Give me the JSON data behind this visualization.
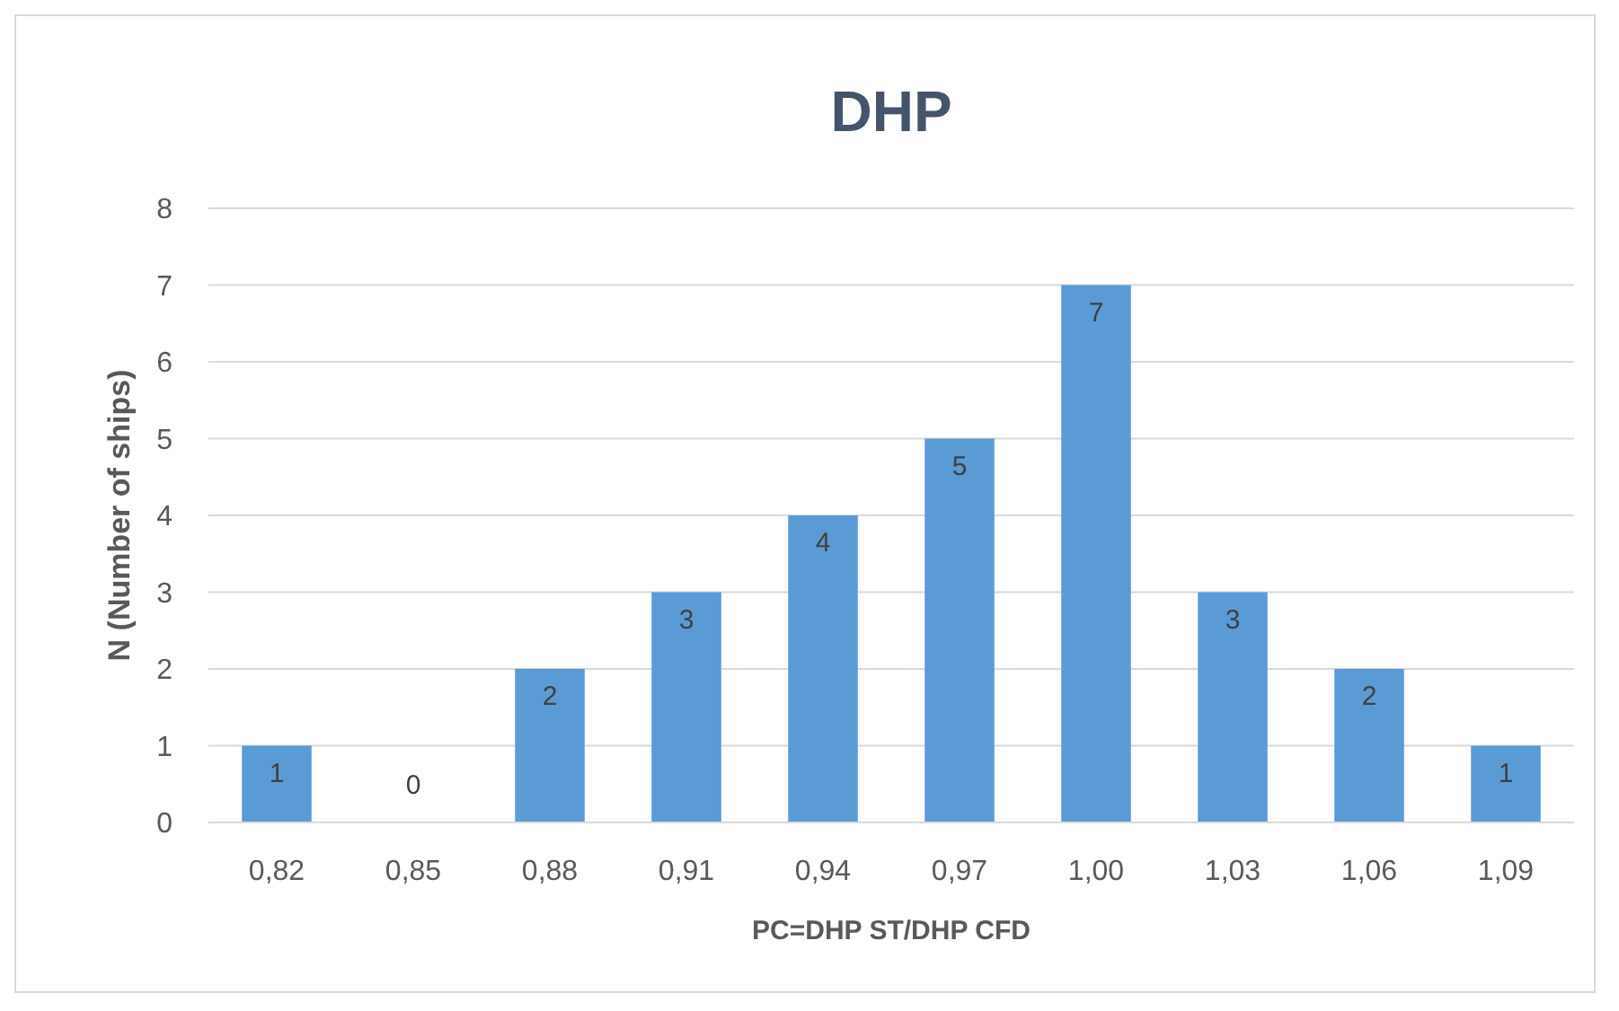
{
  "chart_data": {
    "type": "bar",
    "title": "DHP",
    "xlabel": "PC=DHP ST/DHP CFD",
    "ylabel": "N (Number of ships)",
    "categories": [
      "0,82",
      "0,85",
      "0,88",
      "0,91",
      "0,94",
      "0,97",
      "1,00",
      "1,03",
      "1,06",
      "1,09"
    ],
    "values": [
      1,
      0,
      2,
      3,
      4,
      5,
      7,
      3,
      2,
      1
    ],
    "color": "#5b9bd5",
    "ylim": [
      0,
      8
    ],
    "yticks": [
      0,
      1,
      2,
      3,
      4,
      5,
      6,
      7,
      8
    ],
    "grid": "y",
    "data_labels": true
  }
}
